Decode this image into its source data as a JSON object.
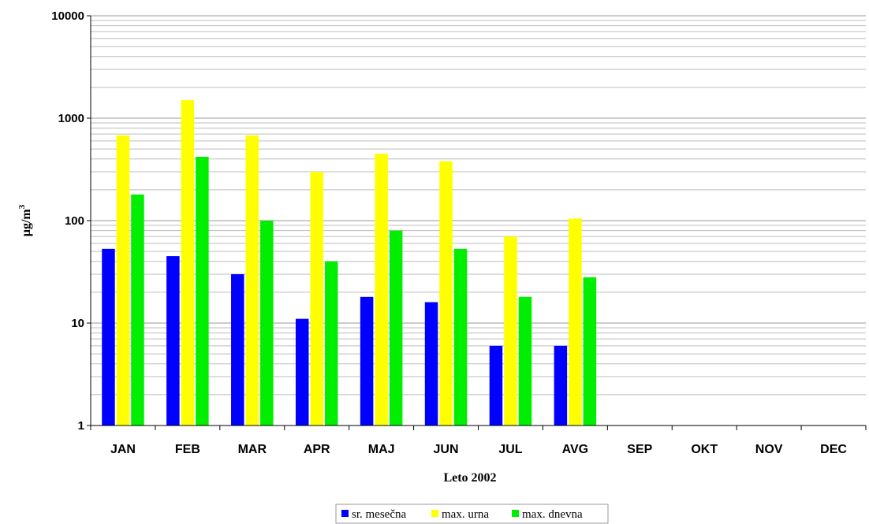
{
  "chart_data": {
    "type": "bar",
    "log_scale": true,
    "ylim": [
      1,
      10000
    ],
    "y_ticks": [
      "1",
      "10",
      "100",
      "1000",
      "10000"
    ],
    "categories": [
      "JAN",
      "FEB",
      "MAR",
      "APR",
      "MAJ",
      "JUN",
      "JUL",
      "AVG",
      "SEP",
      "OKT",
      "NOV",
      "DEC"
    ],
    "xlabel": "Leto 2002",
    "ylabel": "µg/m",
    "ylabel_superscript": "3",
    "grid": true,
    "legend_position": "bottom",
    "series": [
      {
        "name": "sr. mesečna",
        "color": "#0000ff",
        "values": [
          53,
          45,
          30,
          11,
          18,
          16,
          6,
          6,
          null,
          null,
          null,
          null
        ]
      },
      {
        "name": "max. urna",
        "color": "#ffff00",
        "values": [
          680,
          1500,
          680,
          300,
          450,
          380,
          70,
          105,
          null,
          null,
          null,
          null
        ]
      },
      {
        "name": "max. dnevna",
        "color": "#00ee00",
        "values": [
          180,
          420,
          100,
          40,
          80,
          53,
          18,
          28,
          null,
          null,
          null,
          null
        ]
      }
    ]
  }
}
